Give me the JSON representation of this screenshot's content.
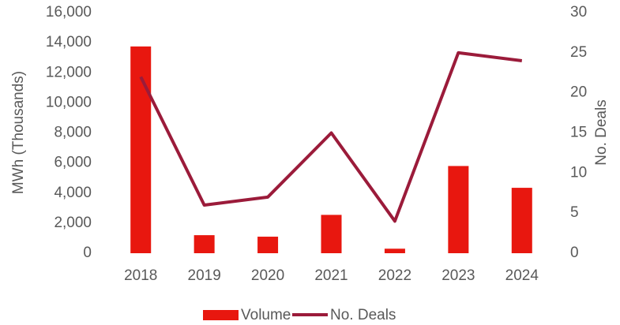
{
  "chart_data": {
    "type": "bar_line",
    "categories": [
      "2018",
      "2019",
      "2020",
      "2021",
      "2022",
      "2023",
      "2024"
    ],
    "series": [
      {
        "name": "Volume",
        "color": "#e8170f",
        "type": "bar",
        "axis": "y",
        "values": [
          13750,
          1200,
          1100,
          2550,
          300,
          5800,
          4350
        ]
      },
      {
        "name": "No. Deals",
        "color": "#9b1b3a",
        "type": "line",
        "axis": "y2",
        "values": [
          22,
          6,
          7,
          15,
          4,
          25,
          24
        ]
      }
    ],
    "ylabel": "MWh (Thousands)",
    "y2label": "No. Deals",
    "ylim": [
      0,
      16000
    ],
    "yticks": [
      0,
      {
        "value": 2000,
        "label": "2,000"
      },
      {
        "value": 4000,
        "label": "4,000"
      },
      {
        "value": 6000,
        "label": "6,000"
      },
      {
        "value": 8000,
        "label": "8,000"
      },
      {
        "value": 10000,
        "label": "10,000"
      },
      {
        "value": 12000,
        "label": "12,000"
      },
      {
        "value": 14000,
        "label": "14,000"
      },
      {
        "value": 16000,
        "label": "16,000"
      }
    ],
    "y2lim": [
      0,
      30
    ],
    "y2ticks": [
      0,
      5,
      10,
      15,
      20,
      25,
      30
    ],
    "grid": false,
    "legend": "bottom"
  }
}
